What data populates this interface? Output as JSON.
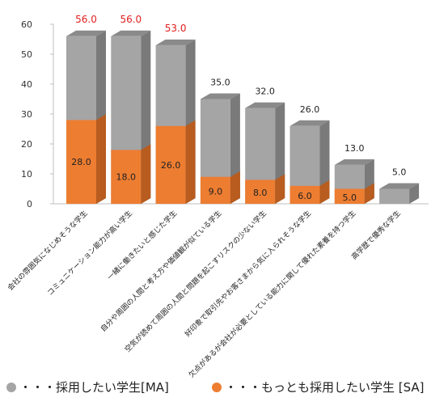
{
  "chart_data": {
    "type": "bar",
    "stacked_3d": true,
    "categories": [
      "会社の雰囲気になじめそうな学生",
      "コミュニケーション能力が高い学生",
      "一緒に働きたいと感じた学生",
      "自分や周囲の人間と考え方や価値観が似ている学生",
      "空気が読めて周囲の人間と問題を起こすリスクの少ない学生",
      "好印象で取引先やお客さまから気に入られそうな学生",
      "欠点があるが会社が必要としている能力に関して優れた素養を持つ学生",
      "高学歴で優秀な学生"
    ],
    "series": [
      {
        "name": "・・・採用したい学生[MA]",
        "values": [
          56.0,
          56.0,
          53.0,
          35.0,
          32.0,
          26.0,
          13.0,
          5.0
        ],
        "labels": [
          "56.0",
          "56.0",
          "53.0",
          "35.0",
          "32.0",
          "26.0",
          "13.0",
          "5.0"
        ]
      },
      {
        "name": "・・・もっとも採用したい学生 [SA]",
        "values": [
          28.0,
          18.0,
          26.0,
          9.0,
          8.0,
          6.0,
          5.0,
          0
        ],
        "labels": [
          "28.0",
          "18.0",
          "26.0",
          "9.0",
          "8.0",
          "6.0",
          "5.0",
          ""
        ]
      }
    ],
    "ylim": [
      0,
      60
    ],
    "yticks": [
      "0",
      "10",
      "20",
      "30",
      "40",
      "50",
      "60"
    ],
    "grid": false,
    "legend_position": "bottom",
    "colors": {
      "ma_front": "#a5a5a5",
      "ma_side": "#7a7a7a",
      "ma_top": "#8a8a8a",
      "sa_front": "#ed7d31",
      "sa_side": "#b85c1f",
      "sa_top": "#d96a22",
      "highlight_label": "#e02020",
      "label": "#222222",
      "axis": "#bfbfbf"
    },
    "highlight_top_labels": 3
  }
}
